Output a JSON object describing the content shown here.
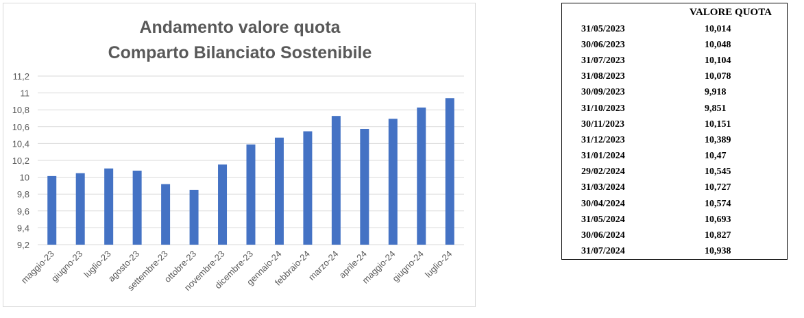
{
  "chart_data": {
    "type": "bar",
    "title": [
      "Andamento valore quota",
      "Comparto Bilanciato Sostenibile"
    ],
    "categories": [
      "maggio-23",
      "giugno-23",
      "luglio-23",
      "agosto-23",
      "settembre-23",
      "ottobre-23",
      "novembre-23",
      "dicembre-23",
      "gennaio-24",
      "febbraio-24",
      "marzo-24",
      "aprile-24",
      "maggio-24",
      "giugno-24",
      "luglio-24"
    ],
    "values": [
      10.014,
      10.048,
      10.104,
      10.078,
      9.918,
      9.851,
      10.151,
      10.389,
      10.47,
      10.545,
      10.727,
      10.574,
      10.693,
      10.827,
      10.938
    ],
    "ylim": [
      9.2,
      11.2
    ],
    "yticks": [
      "9,2",
      "9,4",
      "9,6",
      "9,8",
      "10",
      "10,2",
      "10,4",
      "10,6",
      "10,8",
      "11",
      "11,2"
    ],
    "bar_color": "#4472c4",
    "grid": true,
    "legend": "none",
    "xlabel": "",
    "ylabel": ""
  },
  "table": {
    "header": [
      "",
      "VALORE QUOTA"
    ],
    "rows": [
      [
        "31/05/2023",
        "10,014"
      ],
      [
        "30/06/2023",
        "10,048"
      ],
      [
        "31/07/2023",
        "10,104"
      ],
      [
        "31/08/2023",
        "10,078"
      ],
      [
        "30/09/2023",
        "9,918"
      ],
      [
        "31/10/2023",
        "9,851"
      ],
      [
        "30/11/2023",
        "10,151"
      ],
      [
        "31/12/2023",
        "10,389"
      ],
      [
        "31/01/2024",
        "10,47"
      ],
      [
        "29/02/2024",
        "10,545"
      ],
      [
        "31/03/2024",
        "10,727"
      ],
      [
        "30/04/2024",
        "10,574"
      ],
      [
        "31/05/2024",
        "10,693"
      ],
      [
        "30/06/2024",
        "10,827"
      ],
      [
        "31/07/2024",
        "10,938"
      ]
    ]
  }
}
